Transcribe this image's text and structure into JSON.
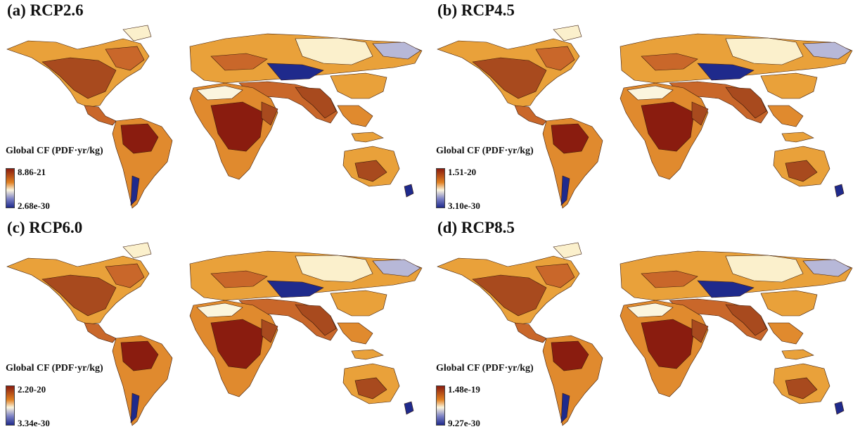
{
  "figure": {
    "legend_colors": {
      "high": "#8a1c0f",
      "mid_high": "#e07f20",
      "mid": "#fbf5de",
      "low": "#1f2a8c"
    },
    "panels": [
      {
        "title": "(a) RCP2.6",
        "legend_title": "Global CF (PDF·yr/kg)",
        "legend_max": "8.86-21",
        "legend_min": "2.68e-30"
      },
      {
        "title": "(b) RCP4.5",
        "legend_title": "Global CF (PDF·yr/kg)",
        "legend_max": "1.51-20",
        "legend_min": "3.10e-30"
      },
      {
        "title": "(c) RCP6.0",
        "legend_title": "Global CF (PDF·yr/kg)",
        "legend_max": "2.20-20",
        "legend_min": "3.34e-30"
      },
      {
        "title": "(d) RCP8.5",
        "legend_title": "Global CF (PDF·yr/kg)",
        "legend_max": "1.48e-19",
        "legend_min": "9.27e-30"
      }
    ]
  }
}
